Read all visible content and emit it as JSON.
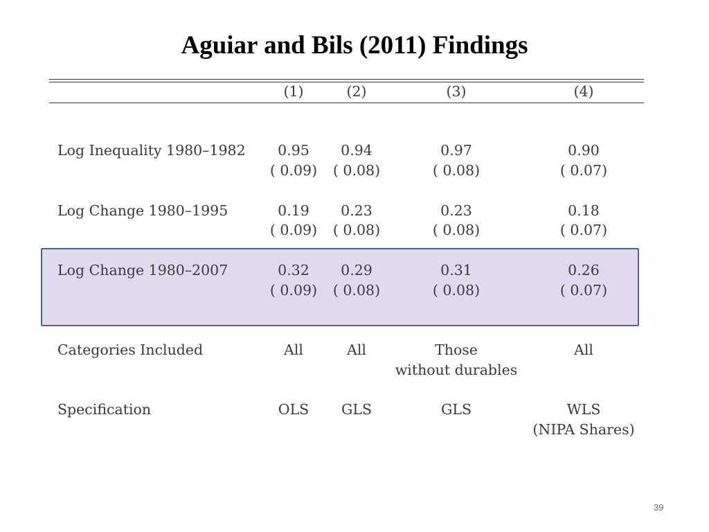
{
  "slide": {
    "title": "Aguiar and Bils (2011) Findings",
    "page_number": "39",
    "highlight_color": "#e3d9ee",
    "highlight_border_color": "#4a6683"
  },
  "table": {
    "columns": [
      "(1)",
      "(2)",
      "(3)",
      "(4)"
    ],
    "rows": [
      {
        "label": "Log Inequality 1980–1982",
        "values": [
          "0.95",
          "0.94",
          "0.97",
          "0.90"
        ],
        "se": [
          "( 0.09)",
          "( 0.08)",
          "( 0.08)",
          "( 0.07)"
        ]
      },
      {
        "label": "Log Change 1980–1995",
        "values": [
          "0.19",
          "0.23",
          "0.23",
          "0.18"
        ],
        "se": [
          "( 0.09)",
          "( 0.08)",
          "( 0.08)",
          "( 0.07)"
        ]
      },
      {
        "label": "Log Change 1980–2007",
        "values": [
          "0.32",
          "0.29",
          "0.31",
          "0.26"
        ],
        "se": [
          "( 0.09)",
          "( 0.08)",
          "( 0.08)",
          "( 0.07)"
        ],
        "highlighted": true
      }
    ],
    "categories": {
      "label": "Categories Included",
      "line1": [
        "All",
        "All",
        "Those",
        "All"
      ],
      "line2": [
        "",
        "",
        "without durables",
        ""
      ]
    },
    "specification": {
      "label": "Specification",
      "line1": [
        "OLS",
        "GLS",
        "GLS",
        "WLS"
      ],
      "line2": [
        "",
        "",
        "",
        "(NIPA Shares)"
      ]
    }
  }
}
